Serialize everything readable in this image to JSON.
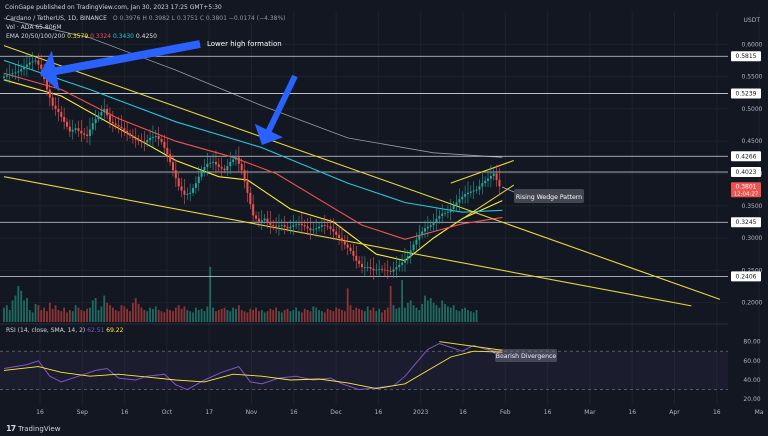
{
  "publisher": "CoinGape published on TradingView.com, Jan 30, 2023 17:25 GMT+5:30",
  "header": {
    "symbol": "Cardano / TetherUS, 1D, BINANCE",
    "ohlc": "O 0.3976 H 0.3982 L 0.3751 C 0.3801 −0.0174 (−4.38%)",
    "vol": "Vol · ADA 65.806M",
    "ema_label": "EMA 20/50/100/200",
    "ema_values": [
      "0.3579",
      "0.3324",
      "0.3430",
      "0.4250"
    ],
    "rsi_label": "RSI (14, close, SMA, 14, 2)",
    "rsi_values": [
      "62.51",
      "69.22"
    ]
  },
  "currency": "USDT",
  "watermark": "TradingView",
  "colors": {
    "background": "#131722",
    "up": "#26a69a",
    "down": "#ef5350",
    "ema20": "#ffeb3b",
    "ema50": "#ef5350",
    "ema100": "#26c6da",
    "ema200": "#d1d4dc",
    "trendline": "#e6d53a",
    "arrow": "#2962ff",
    "rsi": "#7e57c2"
  },
  "chart_data": {
    "type": "candlestick",
    "price_axis": {
      "ticks": [
        "0.6000",
        "0.5500",
        "0.5000",
        "0.4500",
        "0.4000",
        "0.3500",
        "0.3000",
        "0.2500",
        "0.2000"
      ],
      "range": [
        0.17,
        0.65
      ]
    },
    "x_axis": {
      "labels": [
        "16",
        "Sep",
        "16",
        "Oct",
        "17",
        "Nov",
        "16",
        "Dec",
        "16",
        "2023",
        "16",
        "Feb",
        "16",
        "Mar",
        "16",
        "Apr",
        "16",
        "Ma"
      ]
    },
    "horizontal_levels": [
      {
        "label": "0.5815",
        "value": 0.5815
      },
      {
        "label": "0.5239",
        "value": 0.5239
      },
      {
        "label": "0.4266",
        "value": 0.4266
      },
      {
        "label": "0.4023",
        "value": 0.4023
      },
      {
        "label": "0.3245",
        "value": 0.3245
      },
      {
        "label": "0.2406",
        "value": 0.2406
      }
    ],
    "last_price": {
      "label": "0.3801",
      "countdown": "12:04:27",
      "value": 0.3801
    },
    "annotations": [
      "Lower high formation",
      "Rising Wedge Pattern",
      "Bearish Divergence"
    ],
    "price_path": [
      [
        0,
        0.548
      ],
      [
        2,
        0.552
      ],
      [
        4,
        0.555
      ],
      [
        6,
        0.558
      ],
      [
        8,
        0.565
      ],
      [
        10,
        0.572
      ],
      [
        12,
        0.575
      ],
      [
        14,
        0.562
      ],
      [
        16,
        0.53
      ],
      [
        18,
        0.505
      ],
      [
        20,
        0.495
      ],
      [
        22,
        0.48
      ],
      [
        24,
        0.465
      ],
      [
        26,
        0.47
      ],
      [
        28,
        0.462
      ],
      [
        30,
        0.458
      ],
      [
        32,
        0.478
      ],
      [
        34,
        0.49
      ],
      [
        36,
        0.5
      ],
      [
        38,
        0.48
      ],
      [
        40,
        0.475
      ],
      [
        42,
        0.47
      ],
      [
        44,
        0.462
      ],
      [
        46,
        0.455
      ],
      [
        48,
        0.45
      ],
      [
        50,
        0.448
      ],
      [
        52,
        0.455
      ],
      [
        54,
        0.458
      ],
      [
        56,
        0.449
      ],
      [
        58,
        0.43
      ],
      [
        60,
        0.405
      ],
      [
        62,
        0.38
      ],
      [
        64,
        0.367
      ],
      [
        66,
        0.37
      ],
      [
        68,
        0.385
      ],
      [
        70,
        0.405
      ],
      [
        72,
        0.415
      ],
      [
        74,
        0.418
      ],
      [
        76,
        0.41
      ],
      [
        78,
        0.405
      ],
      [
        80,
        0.418
      ],
      [
        82,
        0.425
      ],
      [
        84,
        0.405
      ],
      [
        86,
        0.37
      ],
      [
        88,
        0.335
      ],
      [
        90,
        0.325
      ],
      [
        92,
        0.33
      ],
      [
        94,
        0.32
      ],
      [
        96,
        0.318
      ],
      [
        98,
        0.32
      ],
      [
        100,
        0.315
      ],
      [
        102,
        0.32
      ],
      [
        104,
        0.322
      ],
      [
        106,
        0.318
      ],
      [
        108,
        0.312
      ],
      [
        110,
        0.315
      ],
      [
        112,
        0.32
      ],
      [
        114,
        0.318
      ],
      [
        116,
        0.31
      ],
      [
        118,
        0.3
      ],
      [
        120,
        0.29
      ],
      [
        122,
        0.28
      ],
      [
        124,
        0.265
      ],
      [
        126,
        0.255
      ],
      [
        128,
        0.255
      ],
      [
        130,
        0.25
      ],
      [
        132,
        0.252
      ],
      [
        134,
        0.25
      ],
      [
        136,
        0.248
      ],
      [
        138,
        0.255
      ],
      [
        140,
        0.262
      ],
      [
        142,
        0.272
      ],
      [
        144,
        0.29
      ],
      [
        146,
        0.305
      ],
      [
        148,
        0.315
      ],
      [
        150,
        0.32
      ],
      [
        152,
        0.33
      ],
      [
        154,
        0.338
      ],
      [
        156,
        0.34
      ],
      [
        158,
        0.35
      ],
      [
        160,
        0.36
      ],
      [
        162,
        0.368
      ],
      [
        164,
        0.372
      ],
      [
        166,
        0.375
      ],
      [
        168,
        0.385
      ],
      [
        170,
        0.392
      ],
      [
        172,
        0.4
      ],
      [
        174,
        0.38
      ]
    ],
    "ema_lines": {
      "ema20": [
        [
          0,
          0.545
        ],
        [
          20,
          0.52
        ],
        [
          40,
          0.47
        ],
        [
          60,
          0.42
        ],
        [
          75,
          0.395
        ],
        [
          85,
          0.39
        ],
        [
          100,
          0.345
        ],
        [
          115,
          0.325
        ],
        [
          130,
          0.275
        ],
        [
          140,
          0.265
        ],
        [
          150,
          0.3
        ],
        [
          160,
          0.33
        ],
        [
          174,
          0.358
        ]
      ],
      "ema50": [
        [
          0,
          0.555
        ],
        [
          20,
          0.53
        ],
        [
          40,
          0.485
        ],
        [
          60,
          0.45
        ],
        [
          80,
          0.425
        ],
        [
          95,
          0.4
        ],
        [
          110,
          0.36
        ],
        [
          125,
          0.32
        ],
        [
          140,
          0.298
        ],
        [
          150,
          0.31
        ],
        [
          160,
          0.322
        ],
        [
          174,
          0.332
        ]
      ],
      "ema100": [
        [
          0,
          0.575
        ],
        [
          30,
          0.53
        ],
        [
          60,
          0.48
        ],
        [
          90,
          0.44
        ],
        [
          120,
          0.385
        ],
        [
          140,
          0.355
        ],
        [
          160,
          0.34
        ],
        [
          174,
          0.343
        ]
      ],
      "ema200": [
        [
          0,
          0.64
        ],
        [
          30,
          0.61
        ],
        [
          60,
          0.56
        ],
        [
          90,
          0.505
        ],
        [
          120,
          0.455
        ],
        [
          150,
          0.432
        ],
        [
          174,
          0.425
        ]
      ]
    },
    "trendlines": [
      {
        "from": [
          0,
          0.598
        ],
        "to": [
          250,
          0.205
        ]
      },
      {
        "from": [
          0,
          0.395
        ],
        "to": [
          240,
          0.195
        ]
      },
      {
        "from": [
          156,
          0.385
        ],
        "to": [
          178,
          0.42
        ]
      },
      {
        "from": [
          156,
          0.318
        ],
        "to": [
          178,
          0.382
        ]
      }
    ],
    "volume_bars": [
      12,
      14,
      10,
      18,
      22,
      30,
      26,
      18,
      20,
      10,
      8,
      15,
      14,
      10,
      12,
      9,
      16,
      11,
      14,
      10,
      9,
      12,
      8,
      10,
      9,
      14,
      12,
      10,
      9,
      11,
      12,
      18,
      20,
      10,
      13,
      22,
      16,
      14,
      12,
      10,
      9,
      14,
      13,
      11,
      9,
      16,
      20,
      15,
      12,
      10,
      9,
      12,
      11,
      13,
      10,
      9,
      8,
      11,
      10,
      9,
      12,
      14,
      11,
      13,
      10,
      9,
      8,
      12,
      10,
      11,
      9,
      13,
      46,
      12,
      9,
      10,
      11,
      12,
      10,
      9,
      12,
      11,
      14,
      10,
      9,
      8,
      11,
      10,
      12,
      9,
      10,
      8,
      9,
      11,
      10,
      12,
      9,
      8,
      10,
      11,
      9,
      10,
      12,
      9,
      8,
      11,
      10,
      9,
      13,
      12,
      10,
      9,
      8,
      11,
      10,
      9,
      12,
      11,
      10,
      9,
      28,
      14,
      10,
      12,
      11,
      10,
      9,
      13,
      10,
      12,
      9,
      11,
      8,
      10,
      12,
      30,
      14,
      11,
      12,
      35,
      12,
      16,
      18,
      14,
      12,
      10,
      15,
      22,
      18,
      20,
      16,
      14,
      12,
      18,
      15,
      13,
      12,
      14,
      10,
      9,
      11,
      12,
      10,
      9,
      8,
      10
    ],
    "rsi": {
      "axis_ticks": [
        "80.00",
        "60.00",
        "40.00",
        "20.00"
      ],
      "range": [
        15,
        90
      ],
      "bands": [
        70,
        30
      ],
      "rsi_path": [
        [
          0,
          52
        ],
        [
          8,
          56
        ],
        [
          12,
          60
        ],
        [
          16,
          44
        ],
        [
          20,
          38
        ],
        [
          26,
          44
        ],
        [
          32,
          50
        ],
        [
          36,
          52
        ],
        [
          40,
          42
        ],
        [
          46,
          40
        ],
        [
          50,
          44
        ],
        [
          56,
          46
        ],
        [
          60,
          35
        ],
        [
          64,
          30
        ],
        [
          70,
          40
        ],
        [
          76,
          48
        ],
        [
          82,
          54
        ],
        [
          86,
          38
        ],
        [
          90,
          36
        ],
        [
          96,
          42
        ],
        [
          102,
          44
        ],
        [
          108,
          40
        ],
        [
          114,
          42
        ],
        [
          118,
          36
        ],
        [
          124,
          30
        ],
        [
          130,
          32
        ],
        [
          136,
          34
        ],
        [
          140,
          44
        ],
        [
          144,
          58
        ],
        [
          148,
          72
        ],
        [
          152,
          78
        ],
        [
          156,
          74
        ],
        [
          160,
          70
        ],
        [
          164,
          76
        ],
        [
          168,
          72
        ],
        [
          172,
          70
        ],
        [
          174,
          64
        ]
      ],
      "sma_path": [
        [
          0,
          50
        ],
        [
          12,
          54
        ],
        [
          20,
          48
        ],
        [
          30,
          44
        ],
        [
          40,
          46
        ],
        [
          50,
          43
        ],
        [
          60,
          40
        ],
        [
          70,
          38
        ],
        [
          80,
          46
        ],
        [
          90,
          44
        ],
        [
          100,
          40
        ],
        [
          110,
          41
        ],
        [
          120,
          37
        ],
        [
          130,
          31
        ],
        [
          140,
          36
        ],
        [
          148,
          50
        ],
        [
          156,
          64
        ],
        [
          164,
          70
        ],
        [
          174,
          69
        ]
      ]
    }
  }
}
